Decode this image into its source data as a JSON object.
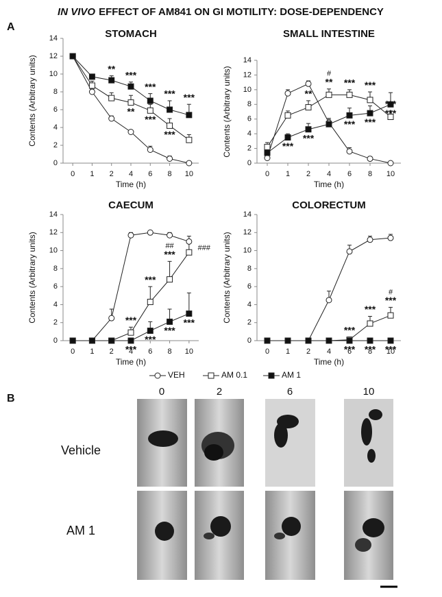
{
  "title": {
    "emphasis": "IN VIVO",
    "rest": "EFFECT OF AM841 ON GI MOTILITY: DOSE-DEPENDENCY"
  },
  "panel_a": {
    "label": "A"
  },
  "chart_data": [
    {
      "type": "line",
      "title": "STOMACH",
      "x_label": "Time (h)",
      "y_label": "Contents (Arbitrary units)",
      "categories": [
        "0",
        "1",
        "2",
        "4",
        "6",
        "8",
        "10"
      ],
      "ylim": [
        0,
        14
      ],
      "yticks": [
        0,
        2,
        4,
        6,
        8,
        10,
        12,
        14
      ],
      "series": [
        {
          "name": "VEH",
          "color": "#222222",
          "marker": "circle",
          "marker_fill": "#ffffff",
          "values": [
            12,
            8,
            5,
            3.5,
            1.5,
            0.5,
            0
          ],
          "errors": [
            0,
            0.3,
            0.3,
            0.2,
            0.4,
            0.3,
            0.1
          ]
        },
        {
          "name": "AM 0.1",
          "color": "#222222",
          "marker": "square",
          "marker_fill": "#ffffff",
          "values": [
            12,
            8.7,
            7.3,
            6.8,
            5.9,
            4.2,
            2.6
          ],
          "errors": [
            0,
            0.5,
            0.6,
            0.8,
            0.7,
            0.8,
            0.6
          ],
          "significance": [
            null,
            null,
            null,
            "**",
            "***",
            "***",
            null
          ]
        },
        {
          "name": "AM 1",
          "color": "#222222",
          "marker": "square",
          "marker_fill": "#111111",
          "values": [
            12,
            9.7,
            9.3,
            8.6,
            7,
            6,
            5.4
          ],
          "errors": [
            0,
            0.3,
            0.5,
            0.5,
            0.8,
            1,
            1.2
          ],
          "significance": [
            null,
            null,
            "**",
            "***",
            "***",
            "***",
            "***"
          ]
        }
      ]
    },
    {
      "type": "line",
      "title": "SMALL INTESTINE",
      "x_label": "Time (h)",
      "y_label": "Contents (Arbitrary units)",
      "categories": [
        "0",
        "1",
        "2",
        "4",
        "6",
        "8",
        "10"
      ],
      "ylim": [
        0,
        14
      ],
      "yticks": [
        0,
        2,
        4,
        6,
        8,
        10,
        12,
        14
      ],
      "series": [
        {
          "name": "VEH",
          "color": "#222222",
          "marker": "circle",
          "marker_fill": "#ffffff",
          "values": [
            0.7,
            9.5,
            10.8,
            5.5,
            1.6,
            0.6,
            0
          ],
          "errors": [
            0.3,
            0.5,
            0.4,
            0.6,
            0.5,
            0.3,
            0.1
          ]
        },
        {
          "name": "AM 0.1",
          "color": "#222222",
          "marker": "square",
          "marker_fill": "#ffffff",
          "values": [
            2.2,
            6.5,
            7.6,
            9.3,
            9.3,
            8.6,
            6.3
          ],
          "errors": [
            0.6,
            0.6,
            0.9,
            0.8,
            0.7,
            1.1,
            0.8
          ],
          "significance": [
            null,
            null,
            "**",
            "**",
            "***",
            "***",
            "***"
          ],
          "hashes": [
            null,
            null,
            null,
            "#",
            null,
            null,
            null
          ]
        },
        {
          "name": "AM 1",
          "color": "#222222",
          "marker": "square",
          "marker_fill": "#111111",
          "values": [
            1.4,
            3.5,
            4.6,
            5.3,
            6.5,
            6.8,
            8
          ],
          "errors": [
            0.5,
            0.5,
            0.8,
            0.6,
            1,
            1,
            1.6
          ],
          "significance": [
            null,
            "***",
            "***",
            null,
            "***",
            "***",
            "***"
          ]
        }
      ]
    },
    {
      "type": "line",
      "title": "CAECUM",
      "x_label": "Time (h)",
      "y_label": "Contents (Arbitrary units)",
      "categories": [
        "0",
        "1",
        "2",
        "4",
        "6",
        "8",
        "10"
      ],
      "ylim": [
        0,
        14
      ],
      "yticks": [
        0,
        2,
        4,
        6,
        8,
        10,
        12,
        14
      ],
      "series": [
        {
          "name": "VEH",
          "color": "#222222",
          "marker": "circle",
          "marker_fill": "#ffffff",
          "values": [
            0,
            0,
            2.5,
            11.7,
            12,
            11.7,
            11
          ],
          "errors": [
            0,
            0,
            1,
            0.3,
            0.2,
            0.3,
            0.6
          ]
        },
        {
          "name": "AM 0.1",
          "color": "#222222",
          "marker": "square",
          "marker_fill": "#ffffff",
          "values": [
            0,
            0,
            0,
            0.9,
            4.3,
            6.8,
            9.8
          ],
          "errors": [
            0,
            0,
            0,
            0.6,
            1.7,
            2,
            1.1
          ],
          "significance": [
            null,
            null,
            null,
            "***",
            "***",
            "***",
            null
          ],
          "hashes": [
            null,
            null,
            null,
            null,
            null,
            "##",
            "###"
          ]
        },
        {
          "name": "AM 1",
          "color": "#222222",
          "marker": "square",
          "marker_fill": "#111111",
          "values": [
            0,
            0,
            0,
            0,
            1.1,
            2.1,
            3
          ],
          "errors": [
            0,
            0,
            0,
            0,
            1,
            1.4,
            2.3
          ],
          "significance": [
            null,
            null,
            null,
            "***",
            "***",
            "***",
            "***"
          ]
        }
      ]
    },
    {
      "type": "line",
      "title": "COLORECTUM",
      "x_label": "Time (h)",
      "y_label": "Contents (Arbitrary units)",
      "categories": [
        "0",
        "1",
        "2",
        "4",
        "6",
        "8",
        "10"
      ],
      "ylim": [
        0,
        14
      ],
      "yticks": [
        0,
        2,
        4,
        6,
        8,
        10,
        12,
        14
      ],
      "series": [
        {
          "name": "VEH",
          "color": "#222222",
          "marker": "circle",
          "marker_fill": "#ffffff",
          "values": [
            0,
            0,
            0,
            4.5,
            9.9,
            11.2,
            11.4
          ],
          "errors": [
            0,
            0,
            0,
            1,
            0.7,
            0.4,
            0.4
          ]
        },
        {
          "name": "AM 0.1",
          "color": "#222222",
          "marker": "square",
          "marker_fill": "#ffffff",
          "values": [
            0,
            0,
            0,
            0,
            0.1,
            1.9,
            2.8
          ],
          "errors": [
            0,
            0,
            0,
            0,
            0.3,
            0.8,
            0.9
          ],
          "significance": [
            null,
            null,
            null,
            null,
            "***",
            "***",
            "***"
          ],
          "hashes": [
            null,
            null,
            null,
            null,
            null,
            null,
            "#"
          ]
        },
        {
          "name": "AM 1",
          "color": "#222222",
          "marker": "square",
          "marker_fill": "#111111",
          "values": [
            0,
            0,
            0,
            0,
            0,
            0,
            0
          ],
          "errors": [
            0,
            0,
            0,
            0,
            0,
            0,
            0
          ],
          "significance": [
            null,
            null,
            null,
            null,
            "***",
            "***",
            "***"
          ]
        }
      ]
    }
  ],
  "panel_b": {
    "label": "B",
    "columns": [
      "0",
      "2",
      "6",
      "10"
    ],
    "rows": [
      "Vehicle",
      "AM 1"
    ]
  }
}
